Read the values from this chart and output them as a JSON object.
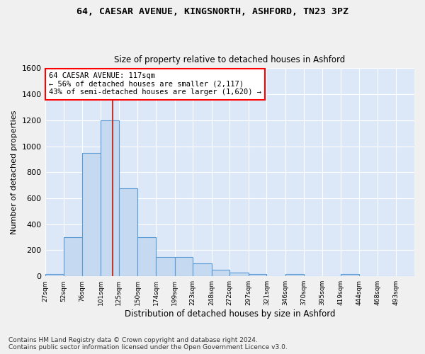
{
  "title1": "64, CAESAR AVENUE, KINGSNORTH, ASHFORD, TN23 3PZ",
  "title2": "Size of property relative to detached houses in Ashford",
  "xlabel": "Distribution of detached houses by size in Ashford",
  "ylabel": "Number of detached properties",
  "footer1": "Contains HM Land Registry data © Crown copyright and database right 2024.",
  "footer2": "Contains public sector information licensed under the Open Government Licence v3.0.",
  "annotation_line1": "64 CAESAR AVENUE: 117sqm",
  "annotation_line2": "← 56% of detached houses are smaller (2,117)",
  "annotation_line3": "43% of semi-detached houses are larger (1,620) →",
  "bar_color": "#c5d9f0",
  "bar_edge_color": "#5b9bd5",
  "vline_color": "#c0392b",
  "vline_x": 117,
  "bin_edges": [
    27,
    52,
    76,
    101,
    125,
    150,
    174,
    199,
    223,
    248,
    272,
    297,
    321,
    346,
    370,
    395,
    419,
    444,
    468,
    493,
    517
  ],
  "bar_heights": [
    20,
    300,
    950,
    1200,
    675,
    300,
    150,
    150,
    100,
    50,
    30,
    20,
    0,
    20,
    0,
    0,
    20,
    0,
    0,
    0
  ],
  "ylim": [
    0,
    1600
  ],
  "yticks": [
    0,
    200,
    400,
    600,
    800,
    1000,
    1200,
    1400,
    1600
  ],
  "axes_bg_color": "#dce8f8",
  "fig_bg_color": "#f0f0f0"
}
